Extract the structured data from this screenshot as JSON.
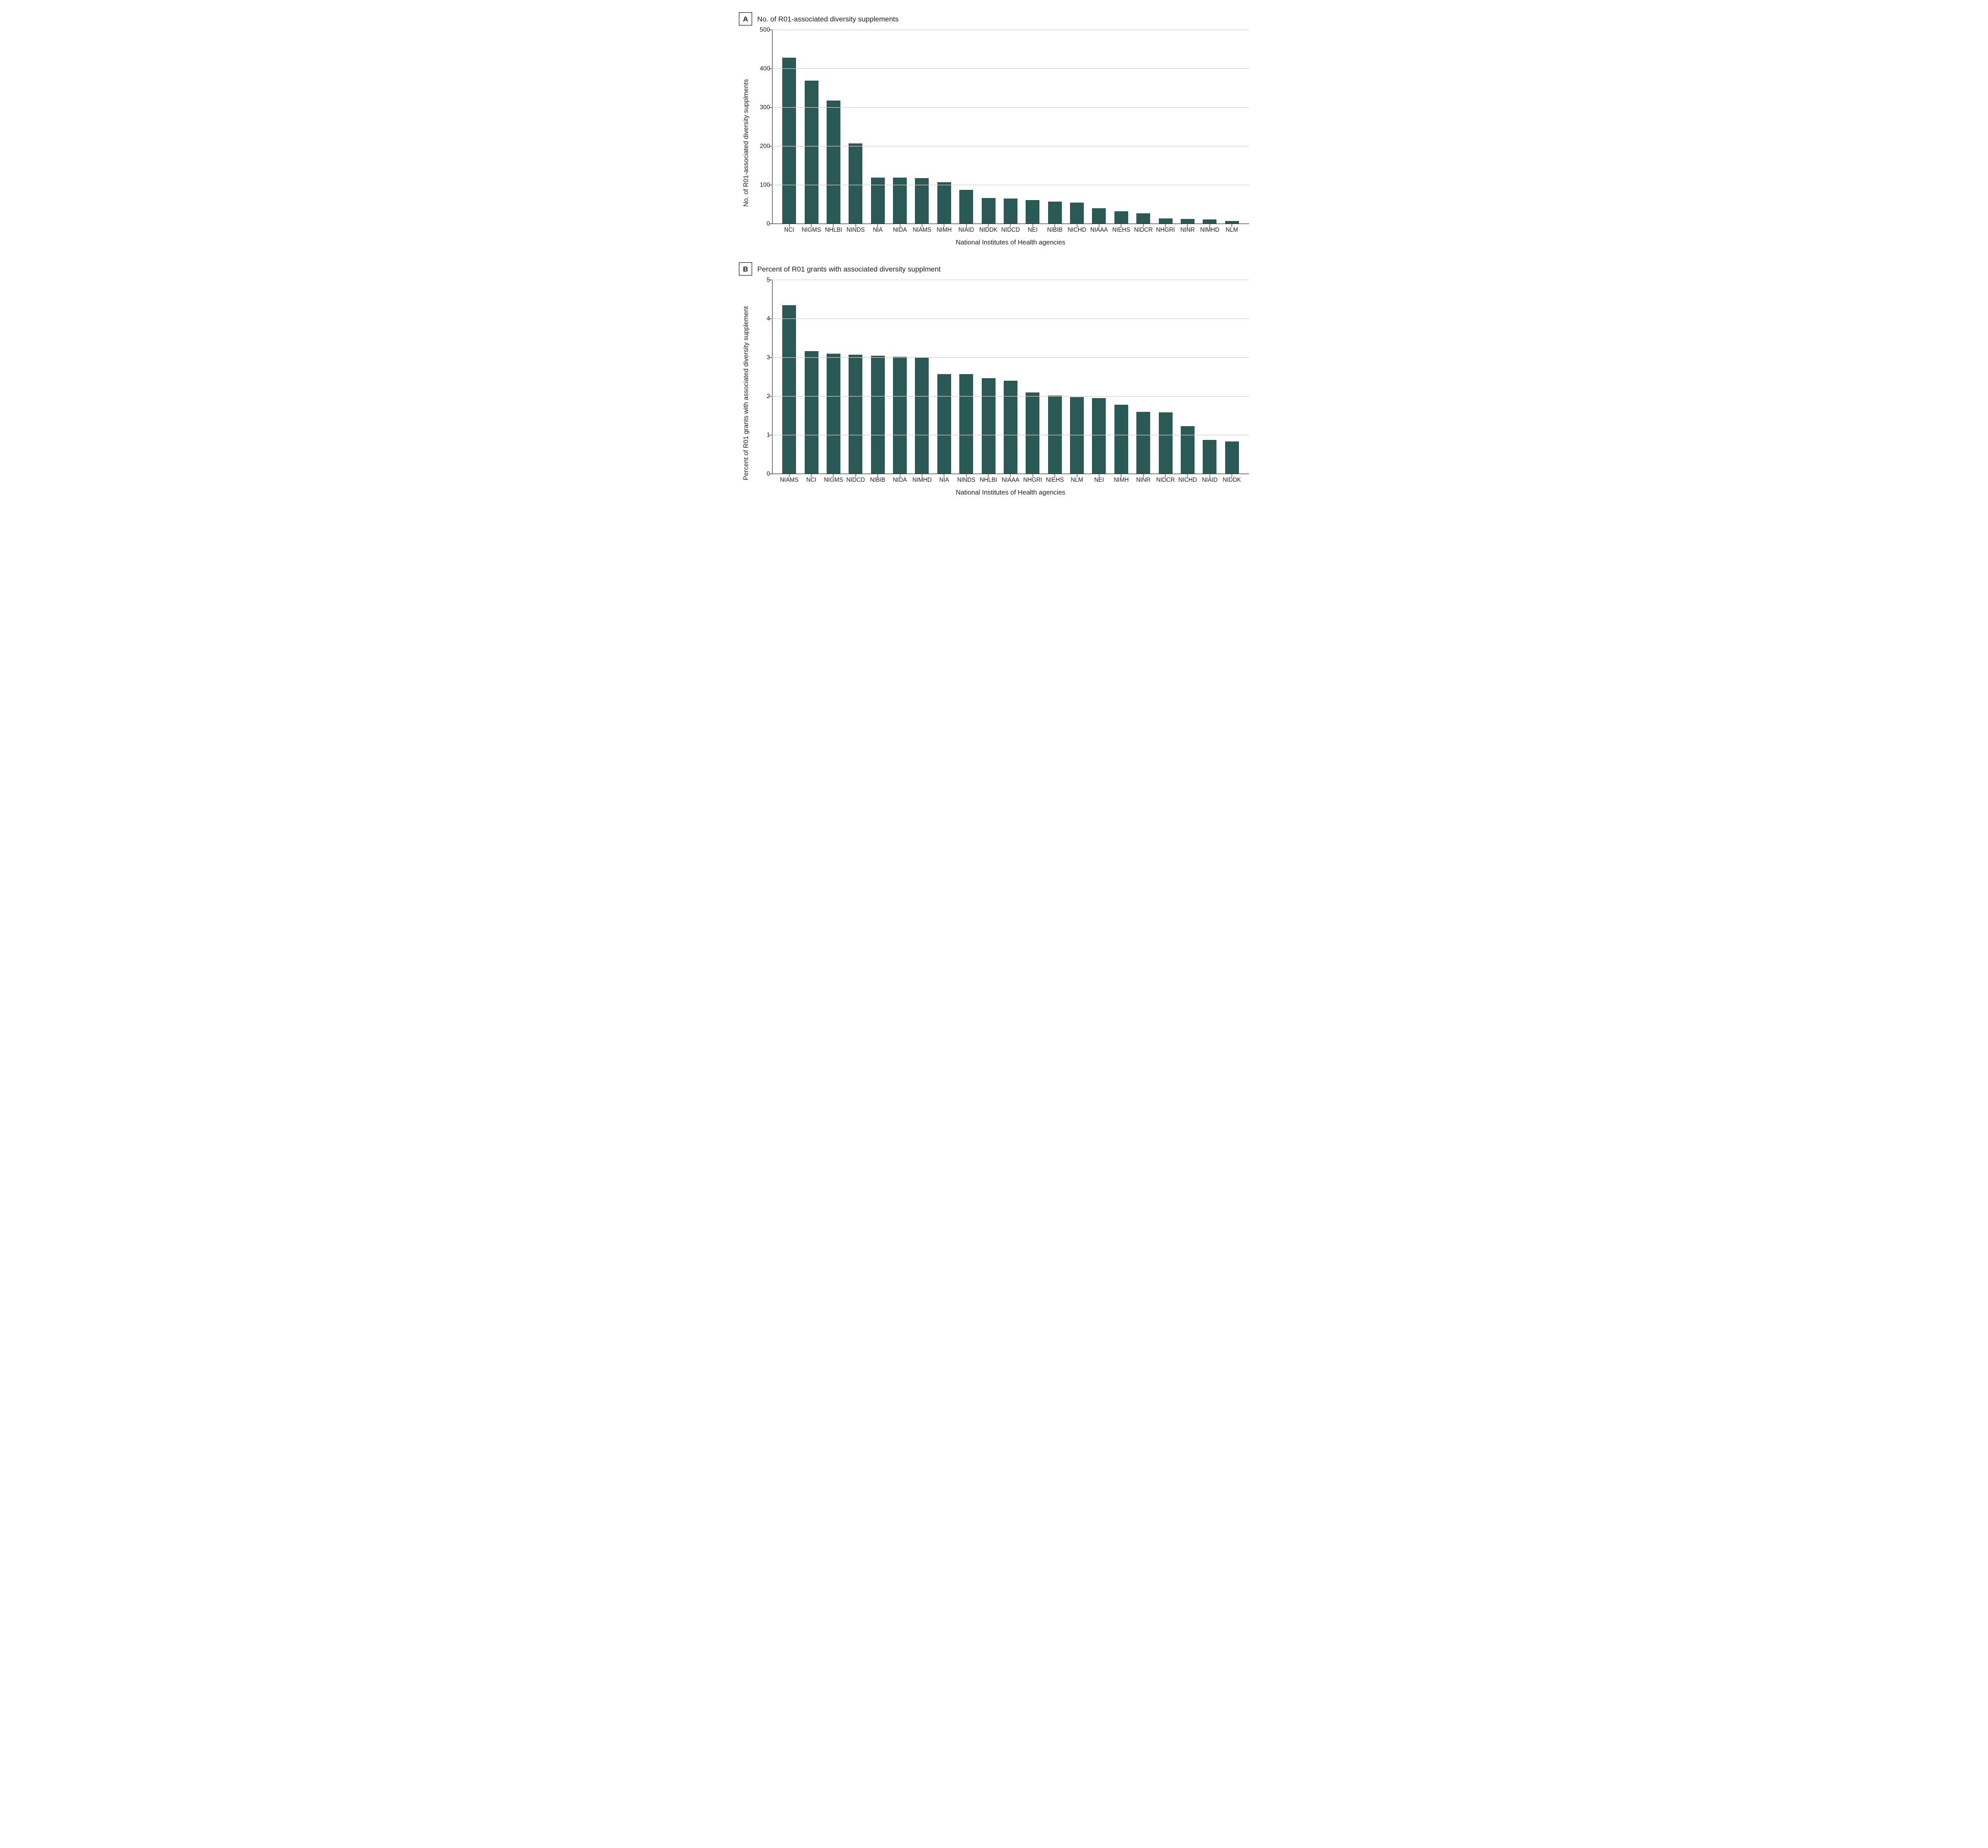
{
  "figure": {
    "background_color": "#ffffff",
    "grid_color": "#d0d0d0",
    "axis_color": "#333333",
    "bar_color": "#2a5a56",
    "font_family": "Arial, Helvetica, sans-serif",
    "panels": [
      {
        "letter": "A",
        "title": "No. of R01-associated diversity supplements",
        "ylabel": "No. of R01-associated diversity supplments",
        "xlabel": "National Institutes of Health agencies",
        "ylim": [
          0,
          500
        ],
        "ytick_step": 100,
        "yticks": [
          0,
          100,
          200,
          300,
          400,
          500
        ],
        "bar_width": 0.62,
        "categories": [
          "NCI",
          "NIGMS",
          "NHLBI",
          "NINDS",
          "NIA",
          "NIDA",
          "NIAMS",
          "NIMH",
          "NIAID",
          "NIDDK",
          "NIDCD",
          "NEI",
          "NIBIB",
          "NICHD",
          "NIAAA",
          "NIEHS",
          "NIDCR",
          "NHGRI",
          "NINR",
          "NIMHD",
          "NLM"
        ],
        "values": [
          428,
          368,
          317,
          206,
          119,
          119,
          117,
          107,
          87,
          66,
          65,
          61,
          56,
          54,
          39,
          31,
          26,
          13,
          12,
          10,
          6
        ]
      },
      {
        "letter": "B",
        "title": "Percent of R01 grants with associated diversity supplment",
        "ylabel": "Percent of R01 grants with associated diversity supplement",
        "xlabel": "National Institutes of Health agencies",
        "ylim": [
          0,
          5.0
        ],
        "ytick_step": 1.0,
        "yticks": [
          0,
          1.0,
          2.0,
          3.0,
          4.0,
          5.0
        ],
        "bar_width": 0.62,
        "categories": [
          "NIAMS",
          "NCI",
          "NIGMS",
          "NIDCD",
          "NIBIB",
          "NIDA",
          "NIMHD",
          "NIA",
          "NINDS",
          "NHLBI",
          "NIAAA",
          "NHGRI",
          "NIEHS",
          "NLM",
          "NEI",
          "NIMH",
          "NINR",
          "NIDCR",
          "NICHD",
          "NIAID",
          "NIDDK"
        ],
        "values": [
          4.34,
          3.16,
          3.09,
          3.06,
          3.04,
          3.01,
          2.99,
          2.57,
          2.56,
          2.46,
          2.4,
          2.09,
          2.01,
          1.97,
          1.95,
          1.77,
          1.59,
          1.58,
          1.23,
          0.87,
          0.83
        ]
      }
    ]
  }
}
